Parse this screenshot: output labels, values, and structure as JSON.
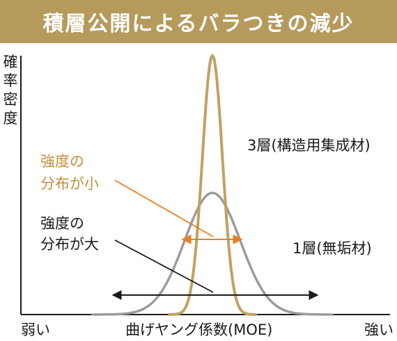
{
  "header": {
    "title": "積層公開によるバラつきの減少"
  },
  "colors": {
    "banner": "#b69a5c",
    "laminated": "#c2a163",
    "single": "#9b9b9b",
    "arrow_small": "#e8801f",
    "arrow_large": "#1a1a1a",
    "text_gold": "#c68d3c"
  },
  "chart_data": {
    "type": "line",
    "title": "",
    "ylabel": "確率密度",
    "xlabel": "曲げヤング係数(MOE)",
    "x_min_label": "弱い",
    "x_max_label": "強い",
    "grid": false,
    "series": [
      {
        "name": "3層(構造用集成材)",
        "distribution": "narrow",
        "relative_peak": 1.0,
        "relative_spread": 0.18
      },
      {
        "name": "1層(無垢材)",
        "distribution": "wide",
        "relative_peak": 0.47,
        "relative_spread": 0.5
      }
    ],
    "annotations": {
      "small": {
        "line1": "強度の",
        "line2": "分布が小"
      },
      "large": {
        "line1": "強度の",
        "line2": "分布が大"
      }
    }
  }
}
